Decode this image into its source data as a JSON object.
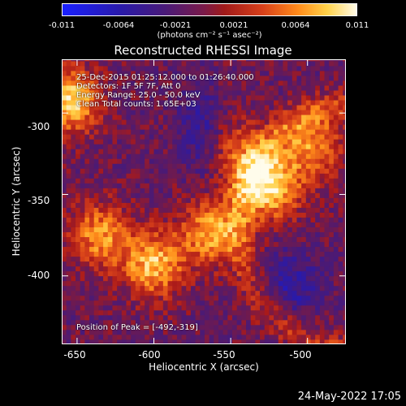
{
  "chart_data": {
    "type": "heatmap",
    "title": "Reconstructed RHESSI Image",
    "xlabel": "Heliocentric X (arcsec)",
    "ylabel": "Heliocentric Y (arcsec)",
    "xlim": [
      -660,
      -475
    ],
    "ylim": [
      -442,
      -267
    ],
    "x_ticks": [
      "-650",
      "-600",
      "-550",
      "-500"
    ],
    "x_tick_values": [
      -650,
      -600,
      -550,
      -500
    ],
    "y_ticks": [
      "-300",
      "-350",
      "-400"
    ],
    "y_tick_values": [
      -300,
      -350,
      -400
    ],
    "colorbar": {
      "min": -0.011,
      "max": 0.011,
      "tick_labels": [
        "-0.011",
        "-0.0064",
        "-0.0021",
        "0.0021",
        "0.0064",
        "0.011"
      ],
      "unit_text": "(photons cm⁻² s⁻¹ asec⁻²)"
    },
    "annotations": [
      "25-Dec-2015 01:25:12.000 to 01:26:40.000",
      "Detectors: 1F 5F 7F, Att 0",
      "Energy Range: 25.0 - 50.0 keV",
      "Clean    Total counts: 1.65E+03"
    ],
    "peak_label": "Position of Peak = [-492,-319]",
    "peak": [
      -492,
      -319
    ],
    "sources": [
      {
        "x": -525,
        "y": -345,
        "intensity": 0.011
      },
      {
        "x": -600,
        "y": -393,
        "intensity": 0.0095
      },
      {
        "x": -635,
        "y": -375,
        "intensity": 0.008
      },
      {
        "x": -563,
        "y": -373,
        "intensity": 0.0085
      },
      {
        "x": -655,
        "y": -292,
        "intensity": 0.0105
      },
      {
        "x": -497,
        "y": -320,
        "intensity": 0.0075
      },
      {
        "x": -545,
        "y": -323,
        "intensity": 0.005
      }
    ]
  },
  "footer": {
    "date": "24-May-2022 17:05"
  }
}
